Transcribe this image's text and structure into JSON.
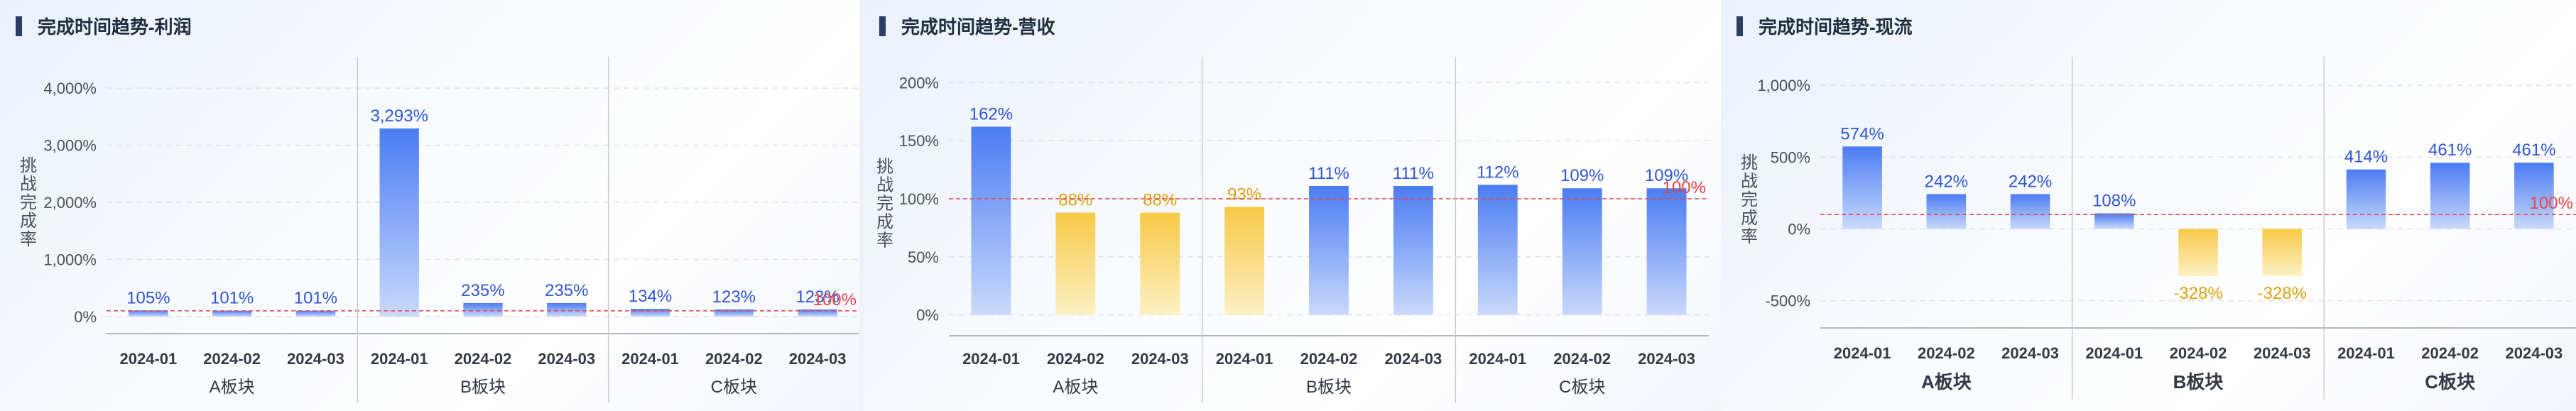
{
  "chart_data": [
    {
      "type": "bar",
      "title": "完成时间趋势-利润",
      "ylabel": "挑战完成率",
      "ylim": [
        -300,
        4300
      ],
      "yticks": [
        0,
        1000,
        2000,
        3000,
        4000
      ],
      "ytick_labels": [
        "0%",
        "1,000%",
        "2,000%",
        "3,000%",
        "4,000%"
      ],
      "categories": [
        "2024-01",
        "2024-02",
        "2024-03",
        "2024-01",
        "2024-02",
        "2024-03",
        "2024-01",
        "2024-02",
        "2024-03"
      ],
      "groups": [
        "A板块",
        "B板块",
        "C板块"
      ],
      "values": [
        105,
        101,
        101,
        3293,
        235,
        235,
        134,
        123,
        123
      ],
      "value_labels": [
        "105%",
        "101%",
        "101%",
        "3,293%",
        "235%",
        "235%",
        "134%",
        "123%",
        "123%"
      ],
      "reference_line": 100,
      "reference_label": "100%",
      "grid": true,
      "colors": {
        "above": "#4b7cf3",
        "below": "#f7c948",
        "label_above": "#2f56d4",
        "label_below": "#e0a010",
        "reference": "#e64545"
      }
    },
    {
      "type": "bar",
      "title": "完成时间趋势-营收",
      "ylabel": "挑战完成率",
      "ylim": [
        -18,
        210
      ],
      "yticks": [
        0,
        50,
        100,
        150,
        200
      ],
      "ytick_labels": [
        "0%",
        "50%",
        "100%",
        "150%",
        "200%"
      ],
      "categories": [
        "2024-01",
        "2024-02",
        "2024-03",
        "2024-01",
        "2024-02",
        "2024-03",
        "2024-01",
        "2024-02",
        "2024-03"
      ],
      "groups": [
        "A板块",
        "B板块",
        "C板块"
      ],
      "values": [
        162,
        88,
        88,
        93,
        111,
        111,
        112,
        109,
        109
      ],
      "value_labels": [
        "162%",
        "88%",
        "88%",
        "93%",
        "111%",
        "111%",
        "112%",
        "109%",
        "109%"
      ],
      "reference_line": 100,
      "reference_label": "100%",
      "grid": true,
      "colors": {
        "above": "#4b7cf3",
        "below": "#f7c948",
        "label_above": "#2f56d4",
        "label_below": "#e0a010",
        "reference": "#e64545"
      }
    },
    {
      "type": "bar",
      "title": "完成时间趋势-现流",
      "ylabel": "挑战完成率",
      "ylim": [
        -690,
        1100
      ],
      "yticks": [
        -500,
        0,
        500,
        1000
      ],
      "ytick_labels": [
        "-500%",
        "0%",
        "500%",
        "1,000%"
      ],
      "categories": [
        "2024-01",
        "2024-02",
        "2024-03",
        "2024-01",
        "2024-02",
        "2024-03",
        "2024-01",
        "2024-02",
        "2024-03"
      ],
      "groups": [
        "A板块",
        "B板块",
        "C板块"
      ],
      "values": [
        574,
        242,
        242,
        108,
        -328,
        -328,
        414,
        461,
        461
      ],
      "value_labels": [
        "574%",
        "242%",
        "242%",
        "108%",
        "-328%",
        "-328%",
        "414%",
        "461%",
        "461%"
      ],
      "reference_line": 100,
      "reference_label": "100%",
      "grid": true,
      "colors": {
        "above": "#4b7cf3",
        "below": "#f7c948",
        "label_above": "#2f56d4",
        "label_below": "#e0a010",
        "reference": "#e64545"
      }
    }
  ]
}
